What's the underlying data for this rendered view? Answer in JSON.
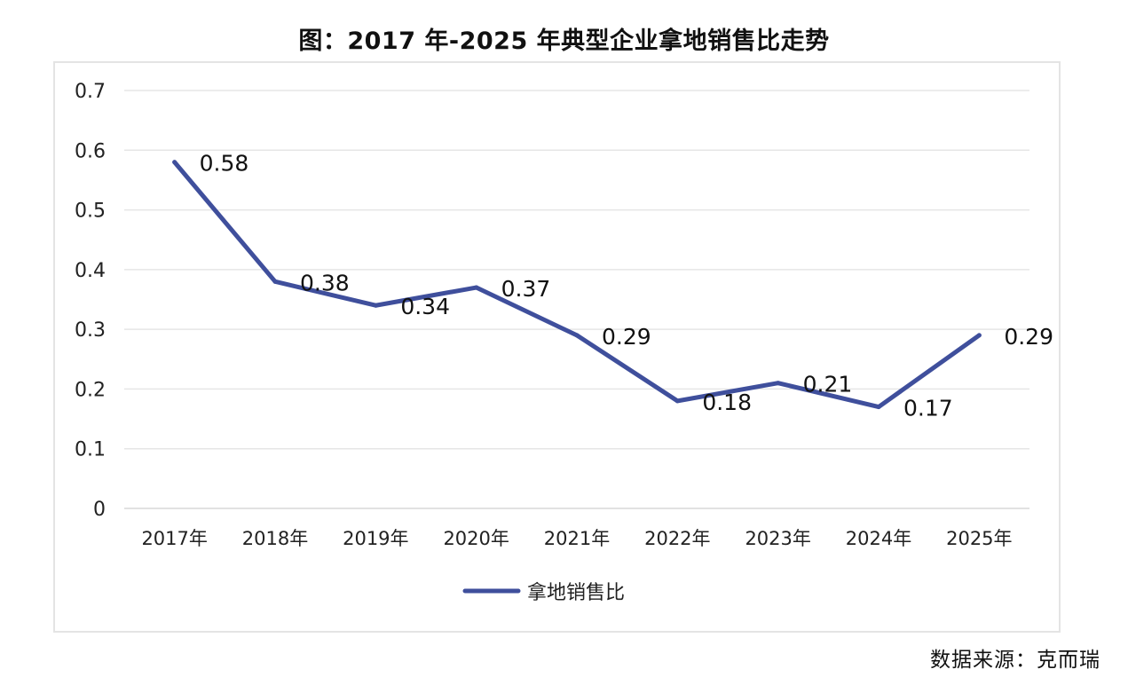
{
  "chart_data": {
    "type": "line",
    "title": "图：2017 年-2025 年典型企业拿地销售比走势",
    "categories": [
      "2017年",
      "2018年",
      "2019年",
      "2020年",
      "2021年",
      "2022年",
      "2023年",
      "2024年",
      "2025年"
    ],
    "series": [
      {
        "name": "拿地销售比",
        "values": [
          0.58,
          0.38,
          0.34,
          0.37,
          0.29,
          0.18,
          0.21,
          0.17,
          0.29
        ],
        "labels": [
          "0.58",
          "0.38",
          "0.34",
          "0.37",
          "0.29",
          "0.18",
          "0.21",
          "0.17",
          "0.29"
        ],
        "color": "#3f4f9c"
      }
    ],
    "yticks": [
      "0",
      "0.1",
      "0.2",
      "0.3",
      "0.4",
      "0.5",
      "0.6",
      "0.7"
    ],
    "ylim": [
      0,
      0.7
    ],
    "grid": true,
    "legend_position": "bottom",
    "source": "数据来源：克而瑞"
  }
}
